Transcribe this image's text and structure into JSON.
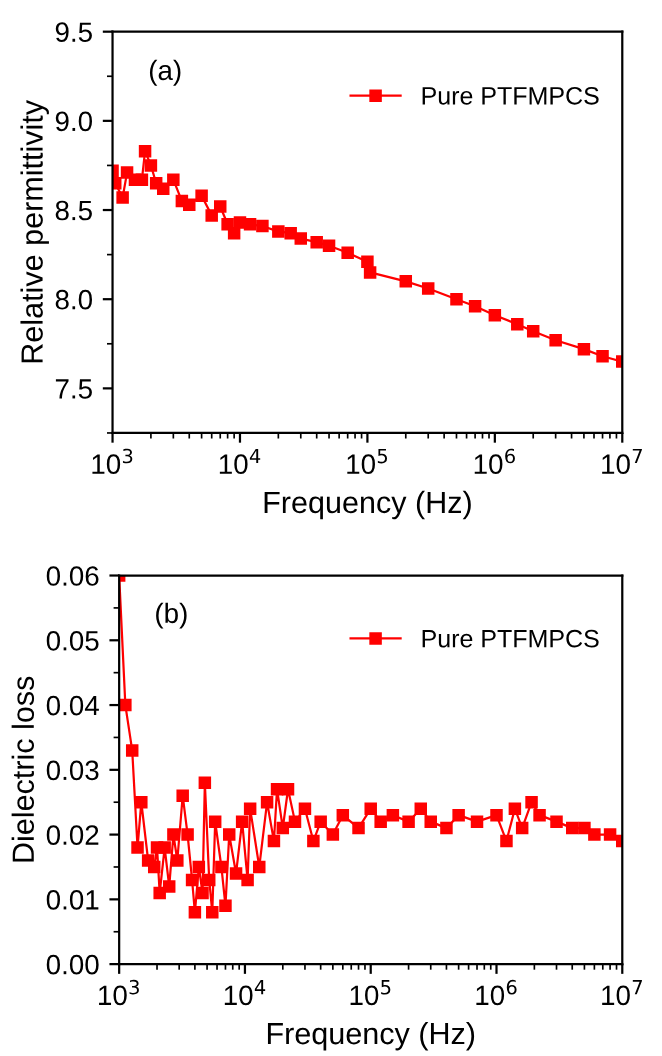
{
  "chart_data": [
    {
      "type": "line",
      "annotations": [
        "(a)"
      ],
      "xlabel": "Frequency (Hz)",
      "ylabel": "Relative permittivity",
      "log": "x",
      "marker": "square",
      "line_style": "solid",
      "legend": "top right",
      "grid": false,
      "xlim": [
        1000,
        10000000
      ],
      "ylim": [
        7.25,
        9.5
      ],
      "xticks": [
        {
          "value": 1000,
          "label": "10$^{3}$"
        },
        {
          "value": 10000,
          "label": "10$^{4}$"
        },
        {
          "value": 100000,
          "label": "10$^{5}$"
        },
        {
          "value": 1000000,
          "label": "10$^{6}$"
        },
        {
          "value": 10000000,
          "label": "10$^{7}$"
        }
      ],
      "yticks": [
        7.5,
        {
          "value": 8,
          "label": "8.0"
        },
        8.5,
        {
          "value": 9,
          "label": "9.0"
        },
        9.5
      ],
      "series": [
        {
          "name": "Pure PTFMPCS",
          "color": "#ff0000",
          "x": [
            1000,
            1050,
            1200,
            1300,
            1500,
            1700,
            1800,
            2000,
            2200,
            2500,
            3000,
            3500,
            4000,
            5000,
            6000,
            7000,
            8000,
            9000,
            10000,
            12000,
            15000,
            20000,
            25000,
            30000,
            40000,
            50000,
            70000,
            100000,
            105000,
            200000,
            300000,
            500000,
            700000,
            1000000,
            1500000,
            2000000,
            3000000,
            5000000,
            7000000,
            10000000
          ],
          "values": [
            8.72,
            8.65,
            8.57,
            8.71,
            8.67,
            8.67,
            8.83,
            8.75,
            8.65,
            8.62,
            8.67,
            8.55,
            8.53,
            8.58,
            8.47,
            8.52,
            8.42,
            8.37,
            8.43,
            8.42,
            8.41,
            8.38,
            8.37,
            8.34,
            8.32,
            8.3,
            8.26,
            8.21,
            8.15,
            8.1,
            8.06,
            8.0,
            7.96,
            7.91,
            7.86,
            7.82,
            7.77,
            7.72,
            7.68,
            7.65
          ]
        }
      ]
    },
    {
      "type": "line",
      "annotations": [
        "(b)"
      ],
      "xlabel": "Frequency (Hz)",
      "ylabel": "Dielectric loss",
      "log": "x",
      "marker": "square",
      "line_style": "solid",
      "legend": "top right",
      "grid": false,
      "xlim": [
        1000,
        10000000
      ],
      "ylim": [
        0.0,
        0.06
      ],
      "xticks": [
        {
          "value": 1000,
          "label": "10$^{3}$"
        },
        {
          "value": 10000,
          "label": "10$^{4}$"
        },
        {
          "value": 100000,
          "label": "10$^{5}$"
        },
        {
          "value": 1000000,
          "label": "10$^{6}$"
        },
        {
          "value": 10000000,
          "label": "10$^{7}$"
        }
      ],
      "yticks": [
        {
          "value": 0,
          "label": "0.00"
        },
        0.01,
        0.02,
        0.03,
        0.04,
        0.05,
        0.06
      ],
      "series": [
        {
          "name": "Pure PTFMPCS",
          "color": "#ff0000",
          "x": [
            1000,
            1120,
            1270,
            1400,
            1500,
            1700,
            1900,
            2000,
            2100,
            2300,
            2500,
            2700,
            2900,
            3200,
            3500,
            3800,
            4000,
            4300,
            4600,
            4800,
            5200,
            5500,
            5800,
            6500,
            7000,
            7500,
            8500,
            9500,
            10500,
            11000,
            13000,
            15000,
            17000,
            18000,
            20000,
            22000,
            25000,
            30000,
            35000,
            40000,
            50000,
            60000,
            80000,
            100000,
            120000,
            150000,
            200000,
            250000,
            300000,
            400000,
            500000,
            700000,
            1000000,
            1200000,
            1400000,
            1600000,
            1900000,
            2200000,
            3000000,
            4000000,
            5000000,
            6000000,
            8000000,
            10000000
          ],
          "values": [
            0.06,
            0.04,
            0.033,
            0.018,
            0.025,
            0.016,
            0.015,
            0.018,
            0.011,
            0.018,
            0.012,
            0.02,
            0.016,
            0.026,
            0.02,
            0.013,
            0.008,
            0.015,
            0.011,
            0.028,
            0.013,
            0.008,
            0.022,
            0.015,
            0.009,
            0.02,
            0.014,
            0.022,
            0.013,
            0.024,
            0.015,
            0.025,
            0.019,
            0.027,
            0.021,
            0.027,
            0.022,
            0.024,
            0.019,
            0.022,
            0.02,
            0.023,
            0.021,
            0.024,
            0.022,
            0.023,
            0.022,
            0.024,
            0.022,
            0.021,
            0.023,
            0.022,
            0.023,
            0.019,
            0.024,
            0.021,
            0.025,
            0.023,
            0.022,
            0.021,
            0.021,
            0.02,
            0.02,
            0.019
          ]
        }
      ]
    }
  ]
}
